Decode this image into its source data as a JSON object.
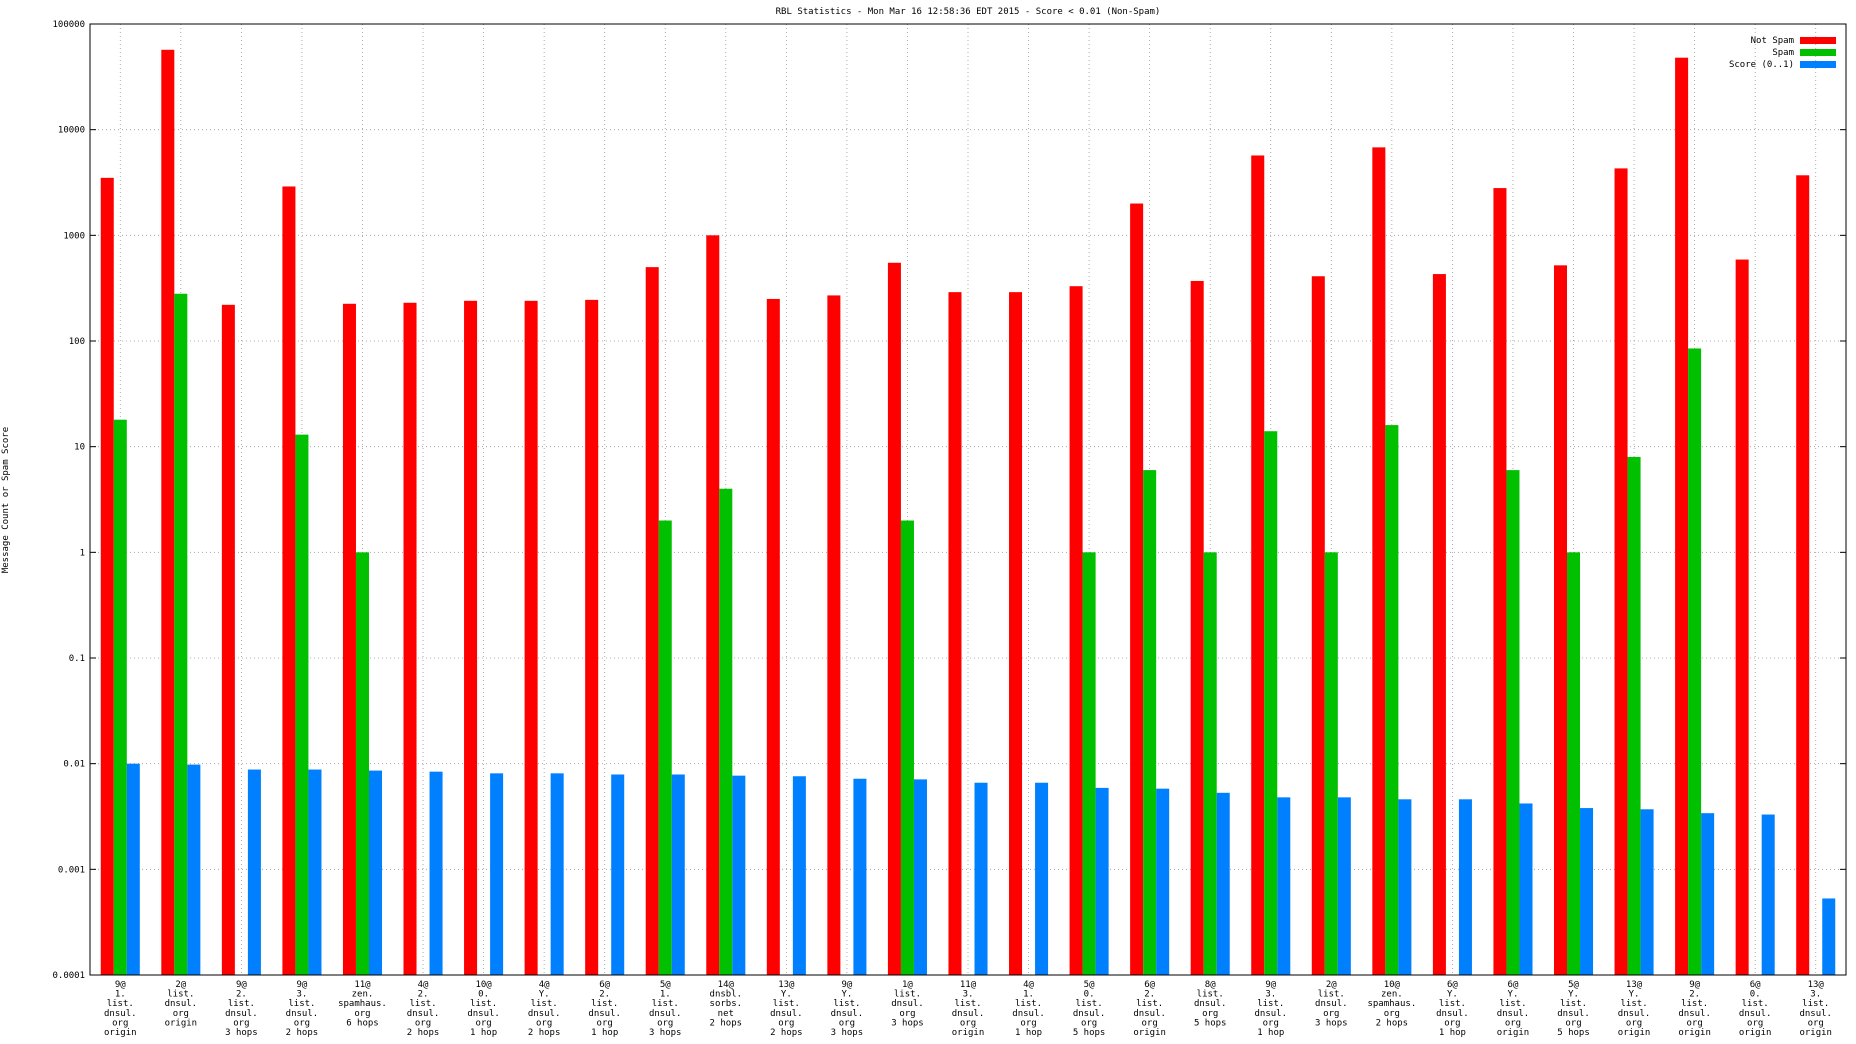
{
  "chart_data": {
    "type": "bar",
    "title": "RBL Statistics - Mon Mar 16 12:58:36 EDT 2015 - Score < 0.01 (Non-Spam)",
    "y_label": "Message Count or Spam Score",
    "log_scale": true,
    "grid": true,
    "legend": "top-right",
    "ylim": [
      0.0001,
      100000
    ],
    "yticks": [
      0.0001,
      0.001,
      0.01,
      0.1,
      1,
      10,
      100,
      1000,
      10000,
      100000
    ],
    "categories": [
      "9@\n1.\nlist.\ndnsul.\norg\norigin",
      "2@\nlist.\ndnsul.\norg\norigin",
      "9@\n2.\nlist.\ndnsul.\norg\n3 hops",
      "9@\n3.\nlist.\ndnsul.\norg\n2 hops",
      "11@\nzen.\nspamhaus.\norg\n6 hops",
      "4@\n2.\nlist.\ndnsul.\norg\n2 hops",
      "10@\n0.\nlist.\ndnsul.\norg\n1 hop",
      "4@\nY.\nlist.\ndnsul.\norg\n2 hops",
      "6@\n2.\nlist.\ndnsul.\norg\n1 hop",
      "5@\n1.\nlist.\ndnsul.\norg\n3 hops",
      "14@\ndnsbl.\nsorbs.\nnet\n2 hops",
      "13@\nY.\nlist.\ndnsul.\norg\n2 hops",
      "9@\nY.\nlist.\ndnsul.\norg\n3 hops",
      "1@\nlist.\ndnsul.\norg\n3 hops",
      "11@\n3.\nlist.\ndnsul.\norg\norigin",
      "4@\n1.\nlist.\ndnsul.\norg\n1 hop",
      "5@\n0.\nlist.\ndnsul.\norg\n5 hops",
      "6@\n2.\nlist.\ndnsul.\norg\norigin",
      "8@\nlist.\ndnsul.\norg\n5 hops",
      "9@\n3.\nlist.\ndnsul.\norg\n1 hop",
      "2@\nlist.\ndnsul.\norg\n3 hops",
      "10@\nzen.\nspamhaus.\norg\n2 hops",
      "6@\nY.\nlist.\ndnsul.\norg\n1 hop",
      "6@\nY.\nlist.\ndnsul.\norg\norigin",
      "5@\nY.\nlist.\ndnsul.\norg\n5 hops",
      "13@\nY.\nlist.\ndnsul.\norg\norigin",
      "9@\n2.\nlist.\ndnsul.\norg\norigin",
      "6@\n0.\nlist.\ndnsul.\norg\norigin",
      "13@\n3.\nlist.\ndnsul.\norg\norigin"
    ],
    "series": [
      {
        "name": "Not Spam",
        "color": "#ff0000",
        "values": [
          3500,
          57000,
          220,
          2900,
          225,
          230,
          240,
          240,
          245,
          500,
          1000,
          250,
          270,
          550,
          290,
          290,
          330,
          2000,
          370,
          5700,
          410,
          6800,
          430,
          2800,
          520,
          4300,
          48000,
          590,
          3700
        ]
      },
      {
        "name": "Spam",
        "color": "#00c000",
        "values": [
          18,
          280,
          null,
          13,
          1,
          null,
          null,
          null,
          null,
          2,
          4,
          null,
          null,
          2,
          null,
          null,
          1,
          6,
          1,
          14,
          1,
          16,
          null,
          6,
          1,
          8,
          85,
          null,
          null
        ]
      },
      {
        "name": "Score (0..1)",
        "color": "#0080ff",
        "values": [
          0.01,
          0.0098,
          0.0088,
          0.0088,
          0.0086,
          0.0084,
          0.0081,
          0.0081,
          0.0079,
          0.0079,
          0.0077,
          0.0076,
          0.0072,
          0.0071,
          0.0066,
          0.0066,
          0.0059,
          0.0058,
          0.0053,
          0.0048,
          0.0048,
          0.0046,
          0.0046,
          0.0042,
          0.0038,
          0.0037,
          0.0034,
          0.0033,
          0.00053
        ]
      }
    ]
  }
}
